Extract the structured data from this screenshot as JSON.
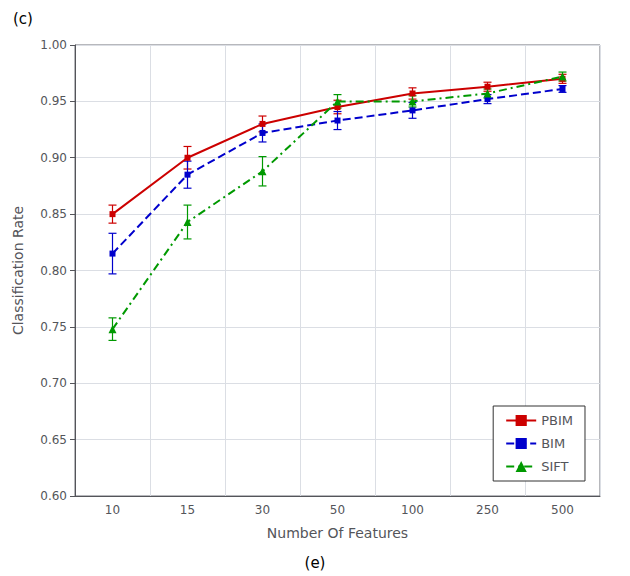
{
  "chart_data": {
    "type": "line",
    "title": "(c)",
    "annotations": [
      "(e)"
    ],
    "xlabel": "Number Of Features",
    "ylabel": "Classification Rate",
    "categories": [
      "10",
      "15",
      "30",
      "50",
      "100",
      "250",
      "500"
    ],
    "series": [
      {
        "name": "PBIM",
        "color": "#cc0000",
        "line_style": "solid",
        "marker": "square",
        "values": [
          0.85,
          0.9,
          0.93,
          0.945,
          0.957,
          0.963,
          0.97
        ],
        "errors": [
          0.008,
          0.01,
          0.007,
          0.006,
          0.005,
          0.004,
          0.004
        ]
      },
      {
        "name": "BIM",
        "color": "#0000cc",
        "line_style": "dashed",
        "marker": "square",
        "values": [
          0.815,
          0.885,
          0.922,
          0.933,
          0.942,
          0.952,
          0.961
        ],
        "errors": [
          0.018,
          0.012,
          0.008,
          0.008,
          0.007,
          0.004,
          0.003
        ]
      },
      {
        "name": "SIFT",
        "color": "#009900",
        "line_style": "dashdot",
        "marker": "triangle",
        "values": [
          0.748,
          0.843,
          0.888,
          0.95,
          0.95,
          0.957,
          0.972
        ],
        "errors": [
          0.01,
          0.015,
          0.013,
          0.006,
          0.005,
          0.004,
          0.004
        ]
      }
    ],
    "ylim": [
      0.6,
      1.0
    ],
    "yticks": [
      {
        "value": 0.6,
        "label": "0.60"
      },
      0.65,
      {
        "value": 0.7,
        "label": "0.70"
      },
      0.75,
      {
        "value": 0.8,
        "label": "0.80"
      },
      0.85,
      {
        "value": 0.9,
        "label": "0.90"
      },
      0.95,
      {
        "value": 1.0,
        "label": "1.00"
      }
    ],
    "grid": true,
    "legend": "lower right"
  }
}
